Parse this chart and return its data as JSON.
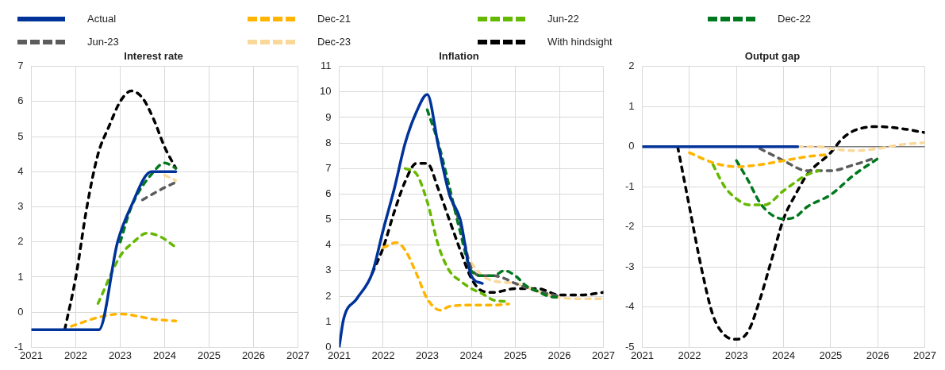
{
  "chart_data": [
    {
      "type": "line",
      "title": "Interest rate",
      "xlim": [
        2021,
        2027
      ],
      "xticks": [
        2021,
        2022,
        2023,
        2024,
        2025,
        2026,
        2027
      ],
      "ylim": [
        -1,
        7
      ],
      "yticks": [
        -1,
        0,
        1,
        2,
        3,
        4,
        5,
        6,
        7
      ],
      "grid": true,
      "legend": "top",
      "marker": "none",
      "series": [
        {
          "name": "Actual",
          "color": "#003399",
          "line_style": "solid",
          "x": [
            2021,
            2022.52,
            2022.94,
            2023.24,
            2023.7,
            2024.25
          ],
          "values": [
            -0.5,
            -0.5,
            2.0,
            3.0,
            4.0,
            4.0
          ]
        },
        {
          "name": "Dec-21",
          "color": "#ffb400",
          "line_style": "dashed",
          "x": [
            2021.9,
            2022.5,
            2023,
            2023.75,
            2024.25
          ],
          "values": [
            -0.4,
            -0.15,
            -0.05,
            -0.2,
            -0.25
          ]
        },
        {
          "name": "Jun-22",
          "color": "#65b800",
          "line_style": "dashed",
          "x": [
            2022.5,
            2023,
            2023.3,
            2023.6,
            2023.9,
            2024.25
          ],
          "values": [
            0.25,
            1.6,
            2.0,
            2.25,
            2.15,
            1.85
          ]
        },
        {
          "name": "Dec-22",
          "color": "#00781e",
          "line_style": "dashed",
          "x": [
            2023,
            2023.25,
            2023.75,
            2024,
            2024.25
          ],
          "values": [
            2.0,
            3.0,
            4.0,
            4.25,
            4.1
          ]
        },
        {
          "name": "Jun-23",
          "color": "#5c5c5c",
          "line_style": "dashed",
          "x": [
            2023.5,
            2024,
            2024.25
          ],
          "values": [
            3.2,
            3.55,
            3.7
          ]
        },
        {
          "name": "Dec-23",
          "color": "#fad89a",
          "line_style": "dashed",
          "x": [
            2024,
            2024.25
          ],
          "values": [
            3.9,
            3.75
          ]
        },
        {
          "name": "With hindsight",
          "color": "#000000",
          "line_style": "dashed",
          "x": [
            2021.75,
            2022,
            2022.25,
            2022.5,
            2022.75,
            2023,
            2023.25,
            2023.5,
            2023.75,
            2024,
            2024.25
          ],
          "values": [
            -0.5,
            1.0,
            3.0,
            4.5,
            5.3,
            6.0,
            6.3,
            6.1,
            5.5,
            4.7,
            4.1
          ]
        }
      ]
    },
    {
      "type": "line",
      "title": "Inflation",
      "xlim": [
        2021,
        2027
      ],
      "xticks": [
        2021,
        2022,
        2023,
        2024,
        2025,
        2026,
        2027
      ],
      "ylim": [
        0,
        11
      ],
      "yticks": [
        0,
        1,
        2,
        3,
        4,
        5,
        6,
        7,
        8,
        9,
        10,
        11
      ],
      "grid": true,
      "marker": "none",
      "series": [
        {
          "color": "#003399",
          "line_style": "solid",
          "x": [
            2021,
            2021.1,
            2021.4,
            2021.75,
            2022,
            2022.25,
            2022.5,
            2022.75,
            2023,
            2023.25,
            2023.5,
            2023.75,
            2024,
            2024.25
          ],
          "values": [
            0,
            1.1,
            1.9,
            2.9,
            4.6,
            6.2,
            8.0,
            9.2,
            9.9,
            7.9,
            6.0,
            5.0,
            2.8,
            2.5
          ]
        },
        {
          "color": "#ffb400",
          "line_style": "dashed",
          "x": [
            2022,
            2022.3,
            2022.5,
            2022.75,
            2023,
            2023.3,
            2023.5,
            2024,
            2024.5,
            2024.85
          ],
          "values": [
            3.9,
            4.1,
            3.8,
            2.9,
            1.9,
            1.45,
            1.6,
            1.65,
            1.65,
            1.7
          ]
        },
        {
          "color": "#65b800",
          "line_style": "dashed",
          "x": [
            2022.5,
            2022.75,
            2023,
            2023.25,
            2023.5,
            2023.75,
            2024,
            2024.25,
            2024.5,
            2024.75
          ],
          "values": [
            7.0,
            6.8,
            5.7,
            4.0,
            3.0,
            2.6,
            2.3,
            2.1,
            1.85,
            1.8
          ]
        },
        {
          "color": "#00781e",
          "line_style": "dashed",
          "x": [
            2023,
            2023.25,
            2023.5,
            2023.75,
            2024,
            2024.25,
            2024.5,
            2024.75,
            2025,
            2025.25,
            2025.5,
            2025.75,
            2026
          ],
          "values": [
            9.3,
            8.0,
            6.3,
            4.5,
            3.0,
            2.8,
            2.8,
            3.0,
            2.8,
            2.4,
            2.2,
            2.0,
            1.95
          ]
        },
        {
          "color": "#5c5c5c",
          "line_style": "dashed",
          "x": [
            2023.5,
            2023.75,
            2024,
            2024.25,
            2024.5,
            2024.75,
            2025,
            2025.5,
            2026
          ],
          "values": [
            6.0,
            4.8,
            3.1,
            2.8,
            2.8,
            2.7,
            2.5,
            2.2,
            2.0
          ]
        },
        {
          "color": "#fad89a",
          "line_style": "dashed",
          "x": [
            2024,
            2024.25,
            2024.5,
            2025,
            2025.5,
            2026,
            2026.5,
            2027
          ],
          "values": [
            3.3,
            2.8,
            2.6,
            2.5,
            2.2,
            1.95,
            1.9,
            1.9
          ]
        },
        {
          "color": "#000000",
          "line_style": "dashed",
          "x": [
            2021.75,
            2022,
            2022.25,
            2022.5,
            2022.75,
            2023,
            2023.25,
            2023.5,
            2023.75,
            2024,
            2024.25,
            2024.5,
            2025,
            2025.5,
            2026,
            2026.5,
            2027
          ],
          "values": [
            2.9,
            3.9,
            5.3,
            6.5,
            7.2,
            7.2,
            6.2,
            5.0,
            3.8,
            2.7,
            2.2,
            2.15,
            2.3,
            2.3,
            2.05,
            2.05,
            2.15
          ]
        }
      ]
    },
    {
      "type": "line",
      "title": "Output gap",
      "xlim": [
        2021,
        2027
      ],
      "xticks": [
        2021,
        2022,
        2023,
        2024,
        2025,
        2026,
        2027
      ],
      "ylim": [
        -5,
        2
      ],
      "yticks": [
        -5,
        -4,
        -3,
        -2,
        -1,
        0,
        1,
        2
      ],
      "grid": true,
      "marker": "none",
      "ref_lines": [
        {
          "axis": "y",
          "value": 0,
          "color": "#808080"
        }
      ],
      "series": [
        {
          "color": "#003399",
          "line_style": "solid",
          "x": [
            2021,
            2024.3
          ],
          "values": [
            0,
            0
          ]
        },
        {
          "color": "#ffb400",
          "line_style": "dashed",
          "x": [
            2022,
            2022.5,
            2023,
            2023.5,
            2024,
            2024.5,
            2024.9
          ],
          "values": [
            -0.15,
            -0.4,
            -0.5,
            -0.45,
            -0.35,
            -0.25,
            -0.2
          ]
        },
        {
          "color": "#65b800",
          "line_style": "dashed",
          "x": [
            2022.5,
            2022.75,
            2023,
            2023.25,
            2023.6,
            2024,
            2024.5,
            2024.75
          ],
          "values": [
            -0.45,
            -1.0,
            -1.3,
            -1.45,
            -1.45,
            -1.1,
            -0.7,
            -0.6
          ]
        },
        {
          "color": "#00781e",
          "line_style": "dashed",
          "x": [
            2023,
            2023.25,
            2023.5,
            2023.75,
            2024,
            2024.25,
            2024.5,
            2025,
            2025.5,
            2026
          ],
          "values": [
            -0.35,
            -0.85,
            -1.4,
            -1.7,
            -1.8,
            -1.75,
            -1.5,
            -1.2,
            -0.7,
            -0.3
          ]
        },
        {
          "color": "#5c5c5c",
          "line_style": "dashed",
          "x": [
            2023.5,
            2023.75,
            2024,
            2024.5,
            2025,
            2025.5,
            2025.9
          ],
          "values": [
            -0.05,
            -0.2,
            -0.35,
            -0.6,
            -0.6,
            -0.45,
            -0.3
          ]
        },
        {
          "color": "#fad89a",
          "line_style": "dashed",
          "x": [
            2024.3,
            2024.75,
            2025,
            2025.5,
            2026,
            2026.5,
            2027
          ],
          "values": [
            0,
            0,
            -0.05,
            -0.1,
            -0.05,
            0.05,
            0.1
          ]
        },
        {
          "color": "#000000",
          "line_style": "dashed",
          "x": [
            2021.75,
            2022,
            2022.25,
            2022.5,
            2022.75,
            2023,
            2023.25,
            2023.5,
            2023.75,
            2024,
            2024.25,
            2024.5,
            2025,
            2025.25,
            2025.5,
            2026,
            2026.5,
            2027
          ],
          "values": [
            0,
            -1.5,
            -3.0,
            -4.2,
            -4.7,
            -4.8,
            -4.6,
            -3.8,
            -2.8,
            -1.8,
            -1.2,
            -0.7,
            -0.15,
            0.2,
            0.4,
            0.5,
            0.45,
            0.35
          ]
        }
      ]
    }
  ]
}
